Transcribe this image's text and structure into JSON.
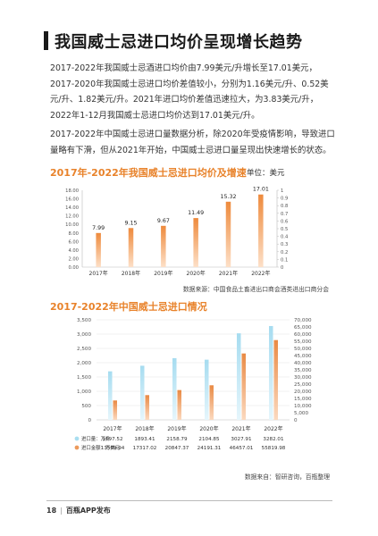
{
  "page": {
    "title": "我国威士忌进口均价呈现增长趋势",
    "paragraph1": "2017-2022年我国威士忌酒进口均价由7.99美元/升增长至17.01美元，2017-2020年我国威士忌进口均价差值较小，分别为1.16美元/升、0.52美元/升、1.82美元/升。2021年进口均价差值迅速拉大，为3.83美元/升，2022年1-12月我国威士忌进口均价达到17.01美元/升。",
    "paragraph2": "2017-2022年中国威士忌进口量数据分析，除2020年受疫情影响，导致进口量略有下滑，但从2021年开始，中国威士忌进口量呈现出快速增长的状态。",
    "footer_page": "18",
    "footer_text": "百瓶APP发布"
  },
  "colors": {
    "accent": "#e8822a",
    "bar_blue": "#a9def0",
    "bar_orange": "#ec9a5c"
  },
  "chart_data": [
    {
      "type": "bar",
      "title": "2017年-2022年我国威士忌进口均价及增速",
      "unit": "单位：美元",
      "source": "数据来源：中国食品土畜进出口商会酒类进出口商分会",
      "categories": [
        "2017年",
        "2018年",
        "2019年",
        "2020年",
        "2021年",
        "2022年"
      ],
      "values": [
        7.99,
        9.15,
        9.67,
        11.49,
        15.32,
        17.01
      ],
      "data_labels": [
        "7.99",
        "9.15",
        "9.67",
        "11.49",
        "15.32",
        "17.01"
      ],
      "ylim": [
        0,
        18
      ],
      "y_ticks": [
        "0.00",
        "2.00",
        "4.00",
        "6.00",
        "8.00",
        "10.00",
        "12.00",
        "14.00",
        "16.00",
        "18.00"
      ],
      "y2lim": [
        0,
        1
      ],
      "y2_ticks": [
        "0",
        "0.1",
        "0.2",
        "0.3",
        "0.4",
        "0.5",
        "0.6",
        "0.7",
        "0.8",
        "0.9",
        "1"
      ],
      "grid": false
    },
    {
      "type": "bar",
      "title": "2017-2022年中国威士忌进口情况",
      "source": "数据来自：智研咨询，百瓶整理",
      "categories": [
        "2017年",
        "2018年",
        "2019年",
        "2020年",
        "2021年",
        "2022年"
      ],
      "series": [
        {
          "name": "进口量：万升",
          "axis": "left",
          "values": [
            1697.52,
            1893.41,
            2158.79,
            2104.85,
            3027.91,
            3282.01
          ],
          "table_values": [
            "1697.52",
            "1893.41",
            "2158.79",
            "2104.85",
            "3027.91",
            "3282.01"
          ]
        },
        {
          "name": "进口金额：万美元",
          "axis": "right",
          "values": [
            13569.94,
            17317.02,
            20847.37,
            24191.31,
            46457.01,
            55819.98
          ],
          "table_values": [
            "13569.94",
            "17317.02",
            "20847.37",
            "24191.31",
            "46457.01",
            "55819.98"
          ]
        }
      ],
      "ylim": [
        0,
        3500
      ],
      "y_ticks": [
        "0",
        "500",
        "1,000",
        "1,500",
        "2,000",
        "2,500",
        "3,000",
        "3,500"
      ],
      "y2lim": [
        0,
        70000
      ],
      "y2_ticks": [
        "0",
        "5,000",
        "10,000",
        "15,000",
        "20,000",
        "25,000",
        "30,000",
        "35,000",
        "40,000",
        "45,000",
        "50,000",
        "55,000",
        "60,000",
        "65,000",
        "70,000"
      ],
      "grid": true,
      "legend": "bottom-table"
    }
  ]
}
